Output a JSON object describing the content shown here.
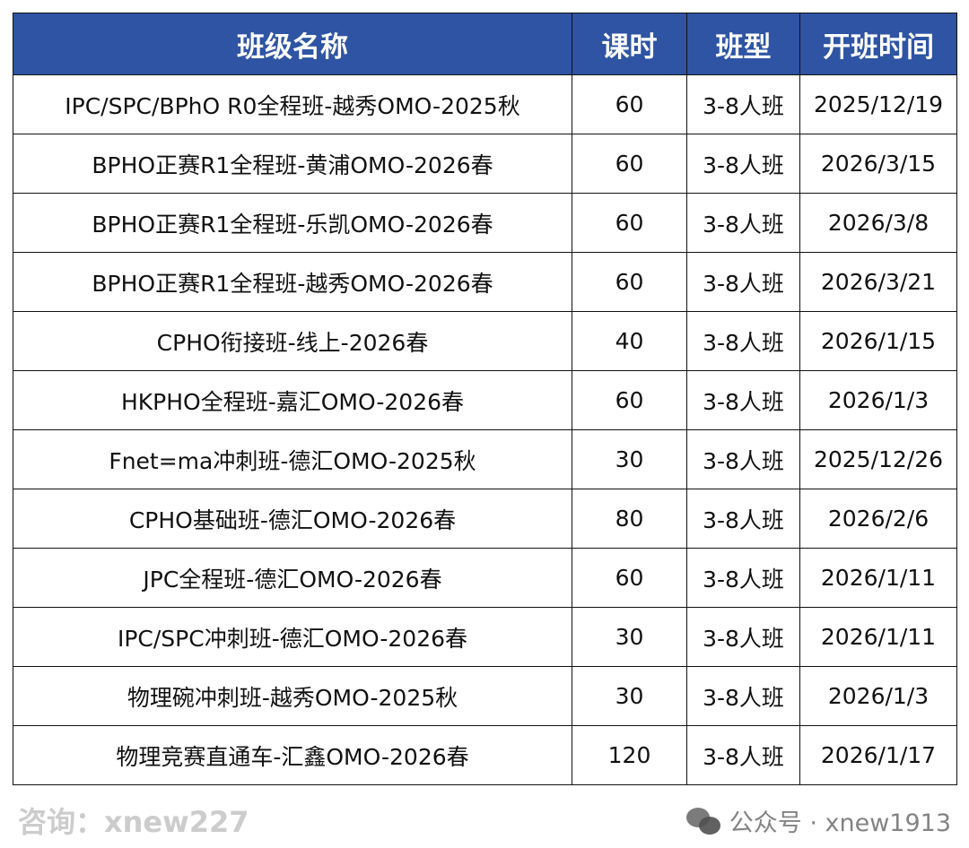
{
  "table": {
    "headers": [
      "班级名称",
      "课时",
      "班型",
      "开班时间"
    ],
    "rows": [
      [
        "IPC/SPC/BPhO R0全程班-越秀OMO-2025秋",
        "60",
        "3-8人班",
        "2025/12/19"
      ],
      [
        "BPHO正赛R1全程班-黄浦OMO-2026春",
        "60",
        "3-8人班",
        "2026/3/15"
      ],
      [
        "BPHO正赛R1全程班-乐凯OMO-2026春",
        "60",
        "3-8人班",
        "2026/3/8"
      ],
      [
        "BPHO正赛R1全程班-越秀OMO-2026春",
        "60",
        "3-8人班",
        "2026/3/21"
      ],
      [
        "CPHO衔接班-线上-2026春",
        "40",
        "3-8人班",
        "2026/1/15"
      ],
      [
        "HKPHO全程班-嘉汇OMO-2026春",
        "60",
        "3-8人班",
        "2026/1/3"
      ],
      [
        "Fnet=ma冲刺班-德汇OMO-2025秋",
        "30",
        "3-8人班",
        "2025/12/26"
      ],
      [
        "CPHO基础班-德汇OMO-2026春",
        "80",
        "3-8人班",
        "2026/2/6"
      ],
      [
        "JPC全程班-德汇OMO-2026春",
        "60",
        "3-8人班",
        "2026/1/11"
      ],
      [
        "IPC/SPC冲刺班-德汇OMO-2026春",
        "30",
        "3-8人班",
        "2026/1/11"
      ],
      [
        "物理碗冲刺班-越秀OMO-2025秋",
        "30",
        "3-8人班",
        "2026/1/3"
      ],
      [
        "物理竞赛直通车-汇鑫OMO-2026春",
        "120",
        "3-8人班",
        "2026/1/17"
      ]
    ]
  },
  "watermark": {
    "diagonal": "咨询：xnew227",
    "footer": "公众号 · xnew1913",
    "footer_icon": "wechat-icon"
  },
  "colors": {
    "header_bg": "#2E54A3",
    "header_text": "#FFFFFF"
  }
}
